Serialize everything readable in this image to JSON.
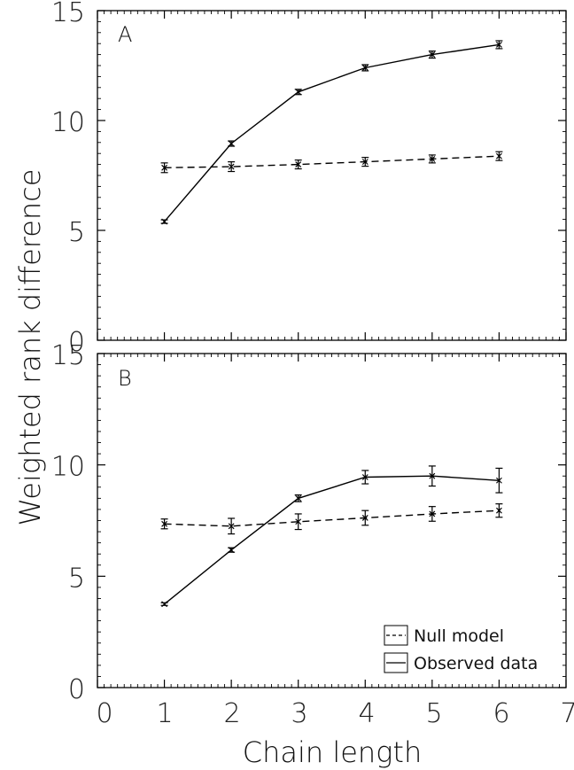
{
  "chart_data": [
    {
      "type": "line",
      "panel_label": "A",
      "x": [
        1,
        2,
        3,
        4,
        5,
        6
      ],
      "xlim": [
        0,
        7
      ],
      "ylim": [
        0,
        15
      ],
      "xticks": [
        0,
        1,
        2,
        3,
        4,
        5,
        6,
        7
      ],
      "yticks": [
        0,
        5,
        10,
        15
      ],
      "show_xtick_labels": false,
      "series": [
        {
          "style": "dashed",
          "values": [
            7.85,
            7.9,
            8.0,
            8.12,
            8.25,
            8.38
          ],
          "errors": [
            0.22,
            0.22,
            0.2,
            0.2,
            0.18,
            0.2
          ]
        },
        {
          "style": "solid",
          "values": [
            5.4,
            8.95,
            11.3,
            12.4,
            13.0,
            13.45
          ],
          "errors": [
            0.08,
            0.12,
            0.12,
            0.14,
            0.16,
            0.18
          ]
        }
      ]
    },
    {
      "type": "line",
      "panel_label": "B",
      "x": [
        1,
        2,
        3,
        4,
        5,
        6
      ],
      "xlim": [
        0,
        7
      ],
      "ylim": [
        0,
        15
      ],
      "xticks": [
        0,
        1,
        2,
        3,
        4,
        5,
        6,
        7
      ],
      "yticks": [
        0,
        5,
        10,
        15
      ],
      "show_xtick_labels": true,
      "series": [
        {
          "style": "dashed",
          "values": [
            7.35,
            7.25,
            7.45,
            7.62,
            7.8,
            7.95
          ],
          "errors": [
            0.22,
            0.35,
            0.35,
            0.33,
            0.33,
            0.3
          ]
        },
        {
          "style": "solid",
          "values": [
            3.75,
            6.18,
            8.5,
            9.45,
            9.5,
            9.3
          ],
          "errors": [
            0.06,
            0.1,
            0.15,
            0.3,
            0.45,
            0.55
          ]
        }
      ]
    }
  ],
  "xlabel": "Chain length",
  "ylabel": "Weighted rank difference",
  "legend": {
    "placement": "bottom-right of panel B",
    "entries": [
      {
        "label": "Null model",
        "style": "dashed"
      },
      {
        "label": "Observed data",
        "style": "solid"
      }
    ]
  },
  "colors": {
    "lines": "#000000",
    "axes": "#000000",
    "background": "#ffffff"
  }
}
